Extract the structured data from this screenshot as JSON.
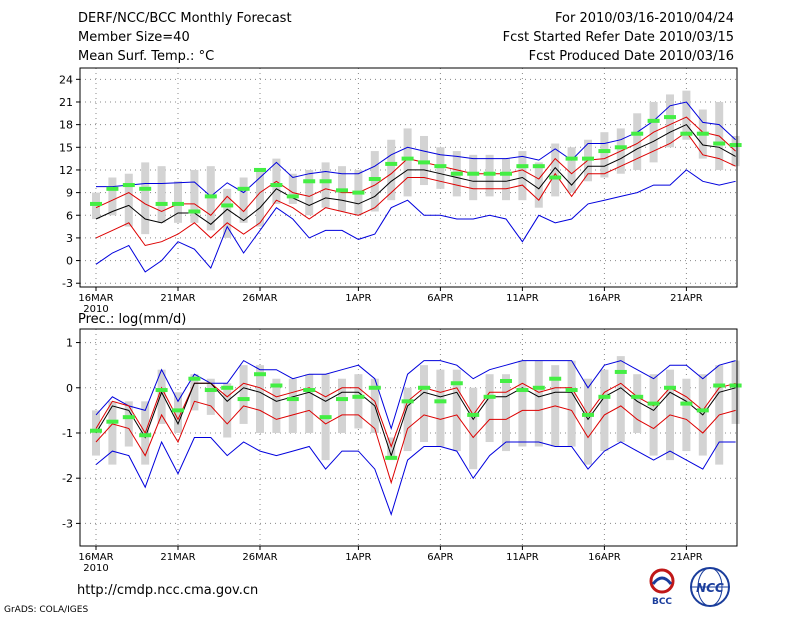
{
  "header": {
    "title": "DERF/NCC/BCC Monthly Forecast",
    "member_size": "Member Size=40",
    "variable": "Mean Surf. Temp.: °C",
    "forecast_period": "For 2010/03/16-2010/04/24",
    "started": "Fcst Started Refer Date 2010/03/15",
    "produced": "Fcst Produced Date 2010/03/16"
  },
  "footer": {
    "url": "http://cmdp.ncc.cma.gov.cn",
    "credit": "GrADS: COLA/IGES",
    "logo_bcc": "BCC",
    "logo_ncc": "NCC"
  },
  "colors": {
    "max_min": "#0000dd",
    "spread": "#dd0000",
    "mean": "#000000",
    "box": "#d3d3d3",
    "median": "#44ee44",
    "grid": "#888888"
  },
  "chart_data": [
    {
      "type": "line",
      "title": "Mean Surf. Temp.: °C",
      "ylabel": "°C",
      "ylim": [
        -3.5,
        25.5
      ],
      "yticks": [
        -3,
        0,
        3,
        6,
        9,
        12,
        15,
        18,
        21,
        24
      ],
      "year_label": "2010",
      "date_ticks": [
        {
          "label": "16MAR",
          "day": 0
        },
        {
          "label": "21MAR",
          "day": 5
        },
        {
          "label": "26MAR",
          "day": 10
        },
        {
          "label": "1APR",
          "day": 16
        },
        {
          "label": "6APR",
          "day": 21
        },
        {
          "label": "11APR",
          "day": 26
        },
        {
          "label": "16APR",
          "day": 31
        },
        {
          "label": "21APR",
          "day": 36
        }
      ],
      "box_low": [
        5.5,
        6.0,
        4.5,
        3.5,
        5.0,
        5.0,
        5.0,
        4.0,
        3.0,
        5.0,
        4.5,
        7.5,
        7.5,
        6.0,
        7.0,
        6.5,
        6.0,
        6.5,
        8.0,
        8.5,
        10.0,
        9.5,
        8.5,
        8.0,
        8.5,
        8.0,
        8.0,
        7.0,
        8.5,
        9.0,
        10.5,
        11.0,
        11.5,
        12.0,
        13.0,
        15.0,
        16.0,
        13.5,
        12.0,
        12.5
      ],
      "box_high": [
        9.0,
        11.0,
        11.5,
        13.0,
        12.5,
        10.5,
        12.0,
        12.5,
        9.5,
        11.0,
        12.0,
        13.5,
        11.5,
        12.0,
        13.0,
        12.5,
        12.0,
        14.5,
        16.0,
        17.5,
        16.5,
        15.0,
        14.5,
        14.0,
        14.0,
        13.5,
        14.5,
        13.0,
        15.5,
        15.0,
        16.0,
        17.0,
        17.5,
        19.5,
        21.0,
        22.0,
        22.5,
        20.0,
        21.0,
        16.5
      ],
      "series": [
        {
          "name": "max",
          "color_key": "max_min",
          "values": [
            9.8,
            9.8,
            10.0,
            10.2,
            10.2,
            10.3,
            10.4,
            8.5,
            10.3,
            9.0,
            11.0,
            13.0,
            11.0,
            11.5,
            11.8,
            11.5,
            11.5,
            12.5,
            14.0,
            15.0,
            14.5,
            14.0,
            13.8,
            13.5,
            13.5,
            13.5,
            13.8,
            13.3,
            14.8,
            13.3,
            15.5,
            15.5,
            16.0,
            17.0,
            18.5,
            20.5,
            21.0,
            18.3,
            18.0,
            16.0
          ]
        },
        {
          "name": "spread_upper",
          "color_key": "spread",
          "values": [
            7.0,
            8.0,
            9.0,
            7.5,
            6.5,
            7.5,
            7.5,
            6.0,
            8.5,
            6.5,
            9.0,
            10.5,
            9.0,
            8.5,
            9.5,
            9.0,
            9.0,
            10.0,
            11.5,
            13.5,
            13.0,
            12.5,
            12.0,
            11.5,
            11.5,
            11.5,
            12.0,
            10.8,
            13.5,
            11.5,
            13.3,
            13.5,
            14.5,
            15.5,
            17.0,
            18.0,
            19.0,
            17.0,
            16.5,
            14.5
          ]
        },
        {
          "name": "ensemble_mean",
          "color_key": "mean",
          "values": [
            5.5,
            6.5,
            7.3,
            5.5,
            5.0,
            6.3,
            6.3,
            4.8,
            6.8,
            5.3,
            7.0,
            9.5,
            8.3,
            7.3,
            8.3,
            8.0,
            7.5,
            8.5,
            10.5,
            12.0,
            12.0,
            11.5,
            11.0,
            10.5,
            10.5,
            10.5,
            11.0,
            9.5,
            12.3,
            10.0,
            12.5,
            12.5,
            13.5,
            14.8,
            15.8,
            17.0,
            18.0,
            15.3,
            15.0,
            13.8
          ]
        },
        {
          "name": "spread_lower",
          "color_key": "spread",
          "values": [
            3.0,
            4.0,
            5.0,
            2.0,
            2.5,
            3.5,
            5.0,
            3.0,
            5.0,
            3.5,
            5.0,
            8.0,
            7.0,
            5.5,
            7.0,
            6.5,
            6.0,
            7.0,
            9.0,
            11.0,
            11.0,
            10.5,
            10.0,
            9.5,
            9.5,
            9.5,
            10.0,
            8.0,
            11.5,
            8.5,
            11.5,
            11.5,
            12.5,
            13.5,
            14.5,
            15.5,
            17.0,
            14.0,
            13.5,
            12.5
          ]
        },
        {
          "name": "min",
          "color_key": "max_min",
          "values": [
            -0.5,
            1.0,
            2.0,
            -1.5,
            0.0,
            2.5,
            1.5,
            -1.0,
            4.5,
            1.0,
            4.0,
            7.0,
            5.5,
            3.0,
            4.0,
            4.0,
            2.8,
            3.5,
            7.0,
            8.0,
            6.0,
            6.0,
            5.5,
            5.5,
            6.0,
            5.5,
            2.5,
            6.0,
            5.0,
            5.5,
            7.5,
            8.0,
            8.5,
            9.0,
            10.0,
            10.0,
            12.0,
            10.5,
            10.0,
            10.5
          ]
        },
        {
          "name": "median",
          "color_key": "median",
          "values": [
            7.5,
            9.5,
            10.0,
            9.5,
            7.5,
            7.5,
            6.5,
            8.5,
            7.3,
            9.5,
            12.0,
            10.0,
            8.5,
            10.5,
            10.5,
            9.3,
            9.0,
            10.8,
            12.8,
            13.5,
            13.0,
            12.5,
            11.5,
            11.5,
            11.5,
            11.5,
            12.5,
            12.5,
            11.0,
            13.5,
            13.5,
            14.5,
            15.0,
            16.8,
            18.5,
            19.0,
            16.8,
            16.8,
            15.5,
            15.3
          ]
        }
      ]
    },
    {
      "type": "line",
      "title": "Prec.: log(mm/d)",
      "ylabel": "log(mm/d)",
      "ylim": [
        -3.5,
        1.3
      ],
      "yticks": [
        -3,
        -2,
        -1,
        0,
        1
      ],
      "year_label": "2010",
      "date_ticks": [
        {
          "label": "16MAR",
          "day": 0
        },
        {
          "label": "21MAR",
          "day": 5
        },
        {
          "label": "26MAR",
          "day": 10
        },
        {
          "label": "1APR",
          "day": 16
        },
        {
          "label": "6APR",
          "day": 21
        },
        {
          "label": "11APR",
          "day": 26
        },
        {
          "label": "16APR",
          "day": 31
        },
        {
          "label": "21APR",
          "day": 36
        }
      ],
      "box_low": [
        -1.5,
        -1.7,
        -1.3,
        -1.7,
        -0.8,
        -1.0,
        -0.5,
        -0.6,
        -1.1,
        -0.8,
        -1.0,
        -1.0,
        -1.0,
        -1.0,
        -1.6,
        -1.0,
        -0.9,
        -1.0,
        -1.6,
        -1.4,
        -1.2,
        -1.3,
        -1.4,
        -1.8,
        -1.2,
        -1.4,
        -1.3,
        -1.3,
        -1.3,
        -1.3,
        -1.7,
        -1.4,
        -1.2,
        -1.0,
        -1.5,
        -1.6,
        -1.4,
        -1.5,
        -1.7,
        -0.8
      ],
      "box_high": [
        -0.5,
        -0.3,
        -0.3,
        -0.3,
        0.4,
        -0.1,
        0.3,
        0.2,
        0.1,
        0.5,
        0.5,
        0.2,
        0.2,
        0.3,
        0.3,
        0.2,
        0.3,
        0.2,
        -1.1,
        0.0,
        0.5,
        0.4,
        0.4,
        0.0,
        0.3,
        0.3,
        0.6,
        0.6,
        0.5,
        0.6,
        0.2,
        0.4,
        0.7,
        0.3,
        0.3,
        0.4,
        0.2,
        0.3,
        0.5,
        0.6
      ],
      "series": [
        {
          "name": "max",
          "color_key": "max_min",
          "values": [
            -0.6,
            -0.2,
            -0.4,
            -0.5,
            0.4,
            -0.3,
            0.3,
            0.1,
            0.1,
            0.6,
            0.4,
            0.4,
            0.2,
            0.3,
            0.3,
            0.4,
            0.5,
            0.2,
            -0.9,
            0.3,
            0.6,
            0.6,
            0.5,
            0.2,
            0.4,
            0.5,
            0.6,
            0.6,
            0.6,
            0.6,
            0.0,
            0.5,
            0.6,
            0.4,
            0.2,
            0.5,
            0.5,
            0.2,
            0.5,
            0.6
          ]
        },
        {
          "name": "spread_upper",
          "color_key": "spread",
          "values": [
            -0.9,
            -0.3,
            -0.4,
            -1.0,
            0.0,
            -0.7,
            0.1,
            0.1,
            -0.2,
            0.1,
            0.0,
            -0.2,
            -0.1,
            0.0,
            -0.2,
            0.0,
            0.0,
            -0.3,
            -1.3,
            -0.3,
            0.0,
            -0.1,
            0.0,
            -0.6,
            -0.1,
            -0.1,
            0.1,
            -0.1,
            0.0,
            0.0,
            -0.6,
            -0.1,
            0.1,
            -0.2,
            -0.4,
            0.0,
            -0.2,
            -0.5,
            0.0,
            0.1
          ]
        },
        {
          "name": "ensemble_mean",
          "color_key": "mean",
          "values": [
            -1.0,
            -0.4,
            -0.5,
            -1.1,
            -0.1,
            -0.8,
            0.1,
            0.1,
            -0.3,
            0.0,
            -0.1,
            -0.3,
            -0.2,
            -0.1,
            -0.3,
            -0.1,
            -0.1,
            -0.4,
            -1.5,
            -0.4,
            -0.1,
            -0.2,
            -0.1,
            -0.7,
            -0.2,
            -0.2,
            0.0,
            -0.2,
            -0.1,
            -0.1,
            -0.7,
            -0.2,
            0.0,
            -0.3,
            -0.5,
            -0.1,
            -0.3,
            -0.6,
            -0.1,
            0.0
          ]
        },
        {
          "name": "spread_lower",
          "color_key": "spread",
          "values": [
            -1.2,
            -0.8,
            -0.9,
            -1.5,
            -0.6,
            -1.2,
            -0.3,
            -0.4,
            -0.8,
            -0.4,
            -0.5,
            -0.7,
            -0.6,
            -0.5,
            -0.8,
            -0.6,
            -0.6,
            -0.9,
            -2.1,
            -0.9,
            -0.6,
            -0.7,
            -0.6,
            -1.1,
            -0.7,
            -0.7,
            -0.5,
            -0.5,
            -0.4,
            -0.5,
            -1.1,
            -0.6,
            -0.4,
            -0.7,
            -0.9,
            -0.6,
            -0.7,
            -1.0,
            -0.6,
            -0.5
          ]
        },
        {
          "name": "min",
          "color_key": "max_min",
          "values": [
            -1.7,
            -1.4,
            -1.5,
            -2.2,
            -1.2,
            -1.9,
            -1.1,
            -1.1,
            -1.5,
            -1.2,
            -1.4,
            -1.5,
            -1.4,
            -1.3,
            -1.8,
            -1.4,
            -1.4,
            -1.8,
            -2.8,
            -1.6,
            -1.3,
            -1.3,
            -1.4,
            -2.0,
            -1.5,
            -1.2,
            -1.2,
            -1.2,
            -1.3,
            -1.3,
            -1.8,
            -1.4,
            -1.2,
            -1.4,
            -1.6,
            -1.4,
            -1.6,
            -1.8,
            -1.2,
            -1.2
          ]
        },
        {
          "name": "median",
          "color_key": "median",
          "values": [
            -0.95,
            -0.75,
            -0.65,
            -1.05,
            -0.05,
            -0.5,
            0.2,
            -0.05,
            0.0,
            -0.25,
            0.3,
            0.05,
            -0.25,
            -0.05,
            -0.65,
            -0.25,
            -0.2,
            0.0,
            -1.55,
            -0.3,
            0.0,
            -0.3,
            0.1,
            -0.6,
            -0.2,
            0.15,
            -0.05,
            0.0,
            0.2,
            -0.05,
            -0.6,
            -0.2,
            0.35,
            -0.2,
            -0.35,
            0.0,
            -0.35,
            -0.5,
            0.05,
            0.05
          ]
        }
      ]
    }
  ]
}
